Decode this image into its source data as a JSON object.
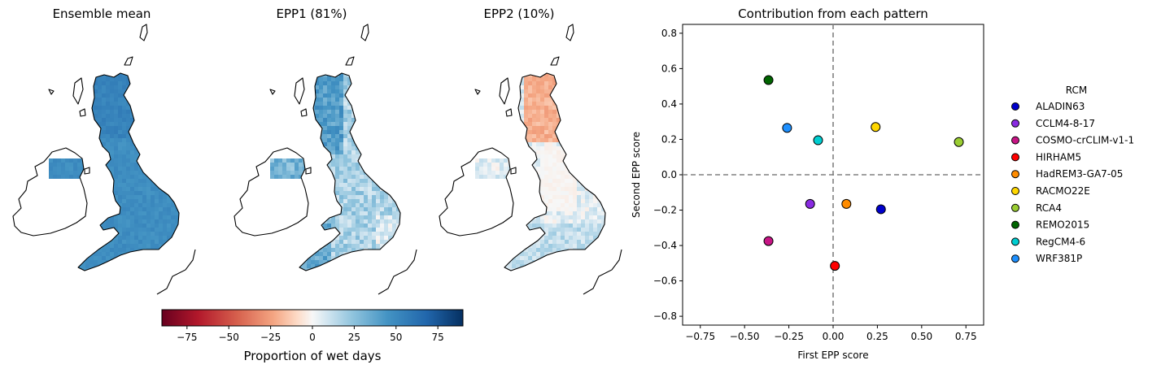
{
  "panels": [
    {
      "title": "Ensemble mean",
      "kind": "mean"
    },
    {
      "title": "EPP1 (81%)",
      "kind": "epp1"
    },
    {
      "title": "EPP2 (10%)",
      "kind": "epp2"
    }
  ],
  "colorbar": {
    "label": "Proportion of wet days",
    "range": [
      -90,
      90
    ],
    "ticks": [
      -75,
      -50,
      -25,
      0,
      25,
      50,
      75
    ],
    "tick_labels": [
      "−75",
      "−50",
      "−25",
      "0",
      "25",
      "50",
      "75"
    ],
    "colormap": "RdBu"
  },
  "chart_data": {
    "type": "scatter",
    "title": "Contribution from each pattern",
    "xlabel": "First EPP score",
    "ylabel": "Second EPP score",
    "xlim": [
      -0.85,
      0.85
    ],
    "ylim": [
      -0.85,
      0.85
    ],
    "xticks": [
      -0.75,
      -0.5,
      -0.25,
      0,
      0.25,
      0.5,
      0.75
    ],
    "xtick_labels": [
      "−0.75",
      "−0.50",
      "−0.25",
      "0.00",
      "0.25",
      "0.50",
      "0.75"
    ],
    "yticks": [
      -0.8,
      -0.6,
      -0.4,
      -0.2,
      0,
      0.2,
      0.4,
      0.6,
      0.8
    ],
    "ytick_labels": [
      "−0.8",
      "−0.6",
      "−0.4",
      "−0.2",
      "0.0",
      "0.2",
      "0.4",
      "0.6",
      "0.8"
    ],
    "reference_lines": {
      "x": 0,
      "y": 0,
      "style": "dashed",
      "color": "#808080"
    },
    "legend_title": "RCM",
    "legend_position": "right, outside",
    "series": [
      {
        "name": "ALADIN63",
        "color": "#0000cc",
        "x": 0.27,
        "y": -0.195
      },
      {
        "name": "CCLM4-8-17",
        "color": "#8a2be2",
        "x": -0.13,
        "y": -0.165
      },
      {
        "name": "COSMO-crCLIM-v1-1",
        "color": "#c71585",
        "x": -0.365,
        "y": -0.375
      },
      {
        "name": "HIRHAM5",
        "color": "#ff0000",
        "x": 0.01,
        "y": -0.515
      },
      {
        "name": "HadREM3-GA7-05",
        "color": "#ff8c00",
        "x": 0.075,
        "y": -0.165
      },
      {
        "name": "RACMO22E",
        "color": "#ffd700",
        "x": 0.24,
        "y": 0.27
      },
      {
        "name": "RCA4",
        "color": "#9acd32",
        "x": 0.71,
        "y": 0.185
      },
      {
        "name": "REMO2015",
        "color": "#006400",
        "x": -0.365,
        "y": 0.535
      },
      {
        "name": "RegCM4-6",
        "color": "#00ced1",
        "x": -0.085,
        "y": 0.195
      },
      {
        "name": "WRF381P",
        "color": "#1e90ff",
        "x": -0.26,
        "y": 0.265
      }
    ]
  }
}
